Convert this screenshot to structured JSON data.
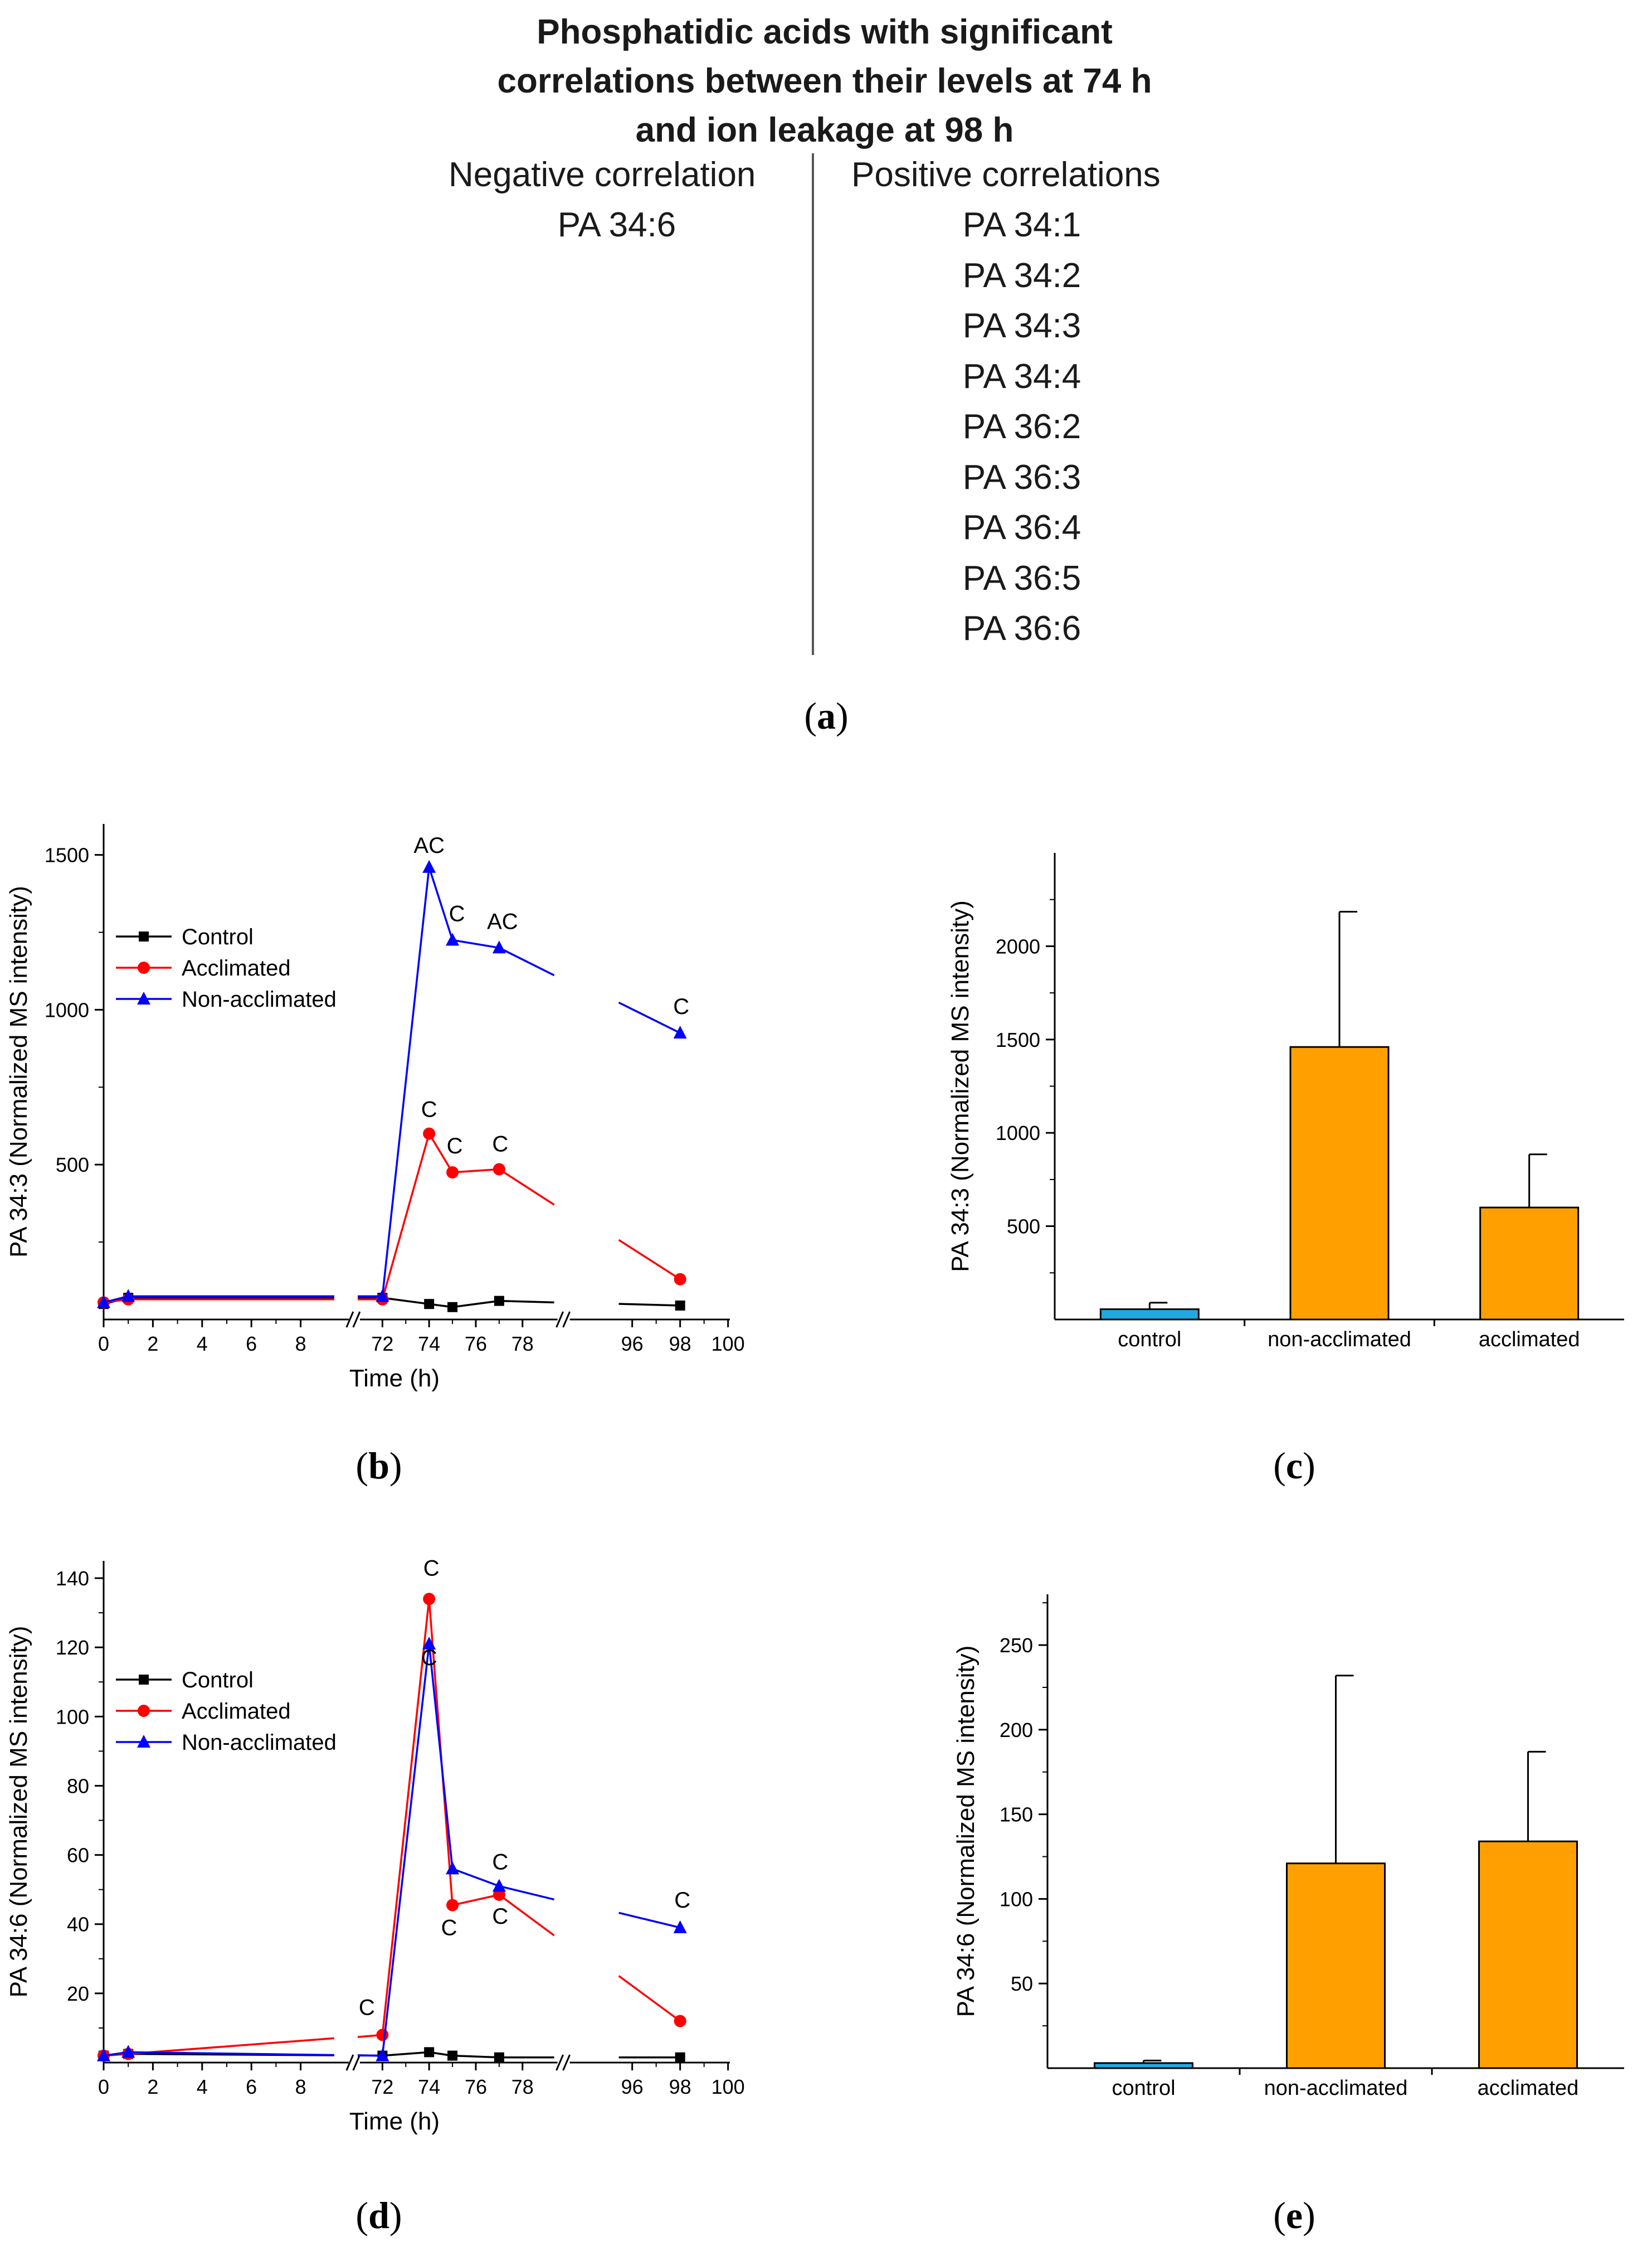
{
  "panel_a": {
    "title_lines": [
      "Phosphatidic acids with significant",
      "correlations between their levels at 74 h",
      "and ion leakage at 98 h"
    ],
    "negative_header": "Negative correlation",
    "positive_header": "Positive correlations",
    "negative_items": [
      "PA 34:6"
    ],
    "positive_items": [
      "PA 34:1",
      "PA 34:2",
      "PA 34:3",
      "PA 34:4",
      "PA 36:2",
      "PA 36:3",
      "PA 36:4",
      "PA 36:5",
      "PA 36:6"
    ]
  },
  "captions": {
    "a": {
      "open": "(",
      "letter": "a",
      "close": ")"
    },
    "b": {
      "open": "(",
      "letter": "b",
      "close": ")"
    },
    "c": {
      "open": "(",
      "letter": "c",
      "close": ")"
    },
    "d": {
      "open": "(",
      "letter": "d",
      "close": ")"
    },
    "e": {
      "open": "(",
      "letter": "e",
      "close": ")"
    }
  },
  "colors": {
    "control": "#000000",
    "acclimated": "#ff0000",
    "non_acclimated": "#0000ff",
    "bar_control": "#1fa9e0",
    "bar_other": "#ffa000"
  },
  "chart_data": [
    {
      "id": "b",
      "type": "line",
      "ylabel": "PA 34:3 (Normalized MS intensity)",
      "xlabel": "Time (h)",
      "x_ticks": [
        0,
        2,
        4,
        6,
        8,
        72,
        74,
        76,
        78,
        96,
        98,
        100
      ],
      "y_ticks": [
        500,
        1000,
        1500
      ],
      "ylim": [
        0,
        1600
      ],
      "series": [
        {
          "name": "Control",
          "color": "#000000",
          "marker": "square",
          "x": [
            0,
            1,
            72,
            74,
            75,
            77,
            98
          ],
          "y": [
            50,
            70,
            70,
            50,
            40,
            60,
            45
          ]
        },
        {
          "name": "Acclimated",
          "color": "#ff0000",
          "marker": "circle",
          "x": [
            0,
            1,
            72,
            74,
            75,
            77,
            98
          ],
          "y": [
            55,
            65,
            65,
            600,
            475,
            485,
            130
          ]
        },
        {
          "name": "Non-acclimated",
          "color": "#0000ff",
          "marker": "triangle",
          "x": [
            0,
            1,
            72,
            74,
            75,
            77,
            98
          ],
          "y": [
            55,
            75,
            75,
            1460,
            1225,
            1200,
            925
          ]
        }
      ],
      "annotations": [
        {
          "x": 74,
          "y": 1460,
          "text": "AC"
        },
        {
          "x": 75,
          "y": 1225,
          "text": "C"
        },
        {
          "x": 77,
          "y": 1200,
          "text": "AC"
        },
        {
          "x": 98,
          "y": 925,
          "text": "C"
        },
        {
          "x": 74,
          "y": 600,
          "text": "C"
        },
        {
          "x": 75,
          "y": 475,
          "text": "C"
        },
        {
          "x": 77,
          "y": 485,
          "text": "C"
        }
      ]
    },
    {
      "id": "c",
      "type": "bar",
      "ylabel": "PA 34:3 (Normalized MS intensity)",
      "categories": [
        "control",
        "non-acclimated",
        "acclimated"
      ],
      "values": [
        55,
        1460,
        600
      ],
      "errors": [
        35,
        725,
        285
      ],
      "y_ticks": [
        500,
        1000,
        1500,
        2000
      ],
      "ylim": [
        0,
        2500
      ]
    },
    {
      "id": "d",
      "type": "line",
      "ylabel": "PA 34:6 (Normalized MS intensity)",
      "xlabel": "Time (h)",
      "x_ticks": [
        0,
        2,
        4,
        6,
        8,
        72,
        74,
        76,
        78,
        96,
        98,
        100
      ],
      "y_ticks": [
        20,
        40,
        60,
        80,
        100,
        120,
        140
      ],
      "ylim": [
        0,
        145
      ],
      "series": [
        {
          "name": "Control",
          "color": "#000000",
          "marker": "square",
          "x": [
            0,
            1,
            72,
            74,
            75,
            77,
            98
          ],
          "y": [
            2,
            2.5,
            2,
            3,
            2,
            1.5,
            1.5
          ]
        },
        {
          "name": "Acclimated",
          "color": "#ff0000",
          "marker": "circle",
          "x": [
            0,
            1,
            72,
            74,
            75,
            77,
            98
          ],
          "y": [
            2,
            2.5,
            8,
            134,
            45.5,
            48.5,
            12
          ]
        },
        {
          "name": "Non-acclimated",
          "color": "#0000ff",
          "marker": "triangle",
          "x": [
            0,
            1,
            72,
            74,
            75,
            77,
            98
          ],
          "y": [
            2,
            3,
            2,
            121,
            56,
            51,
            39
          ]
        }
      ],
      "annotations": [
        {
          "x": 72,
          "y": 8,
          "text": "C"
        },
        {
          "x": 74,
          "y": 134,
          "text": "C"
        },
        {
          "x": 74,
          "y": 121,
          "text": "C"
        },
        {
          "x": 75,
          "y": 45.5,
          "text": "C"
        },
        {
          "x": 77,
          "y": 48.5,
          "text": "C"
        },
        {
          "x": 77,
          "y": 51,
          "text": "C"
        },
        {
          "x": 98,
          "y": 39,
          "text": "C"
        }
      ]
    },
    {
      "id": "e",
      "type": "bar",
      "ylabel": "PA 34:6 (Normalized MS intensity)",
      "categories": [
        "control",
        "non-acclimated",
        "acclimated"
      ],
      "values": [
        3,
        121,
        134
      ],
      "errors": [
        1.5,
        111,
        53
      ],
      "y_ticks": [
        50,
        100,
        150,
        200,
        250
      ],
      "ylim": [
        0,
        280
      ]
    }
  ]
}
